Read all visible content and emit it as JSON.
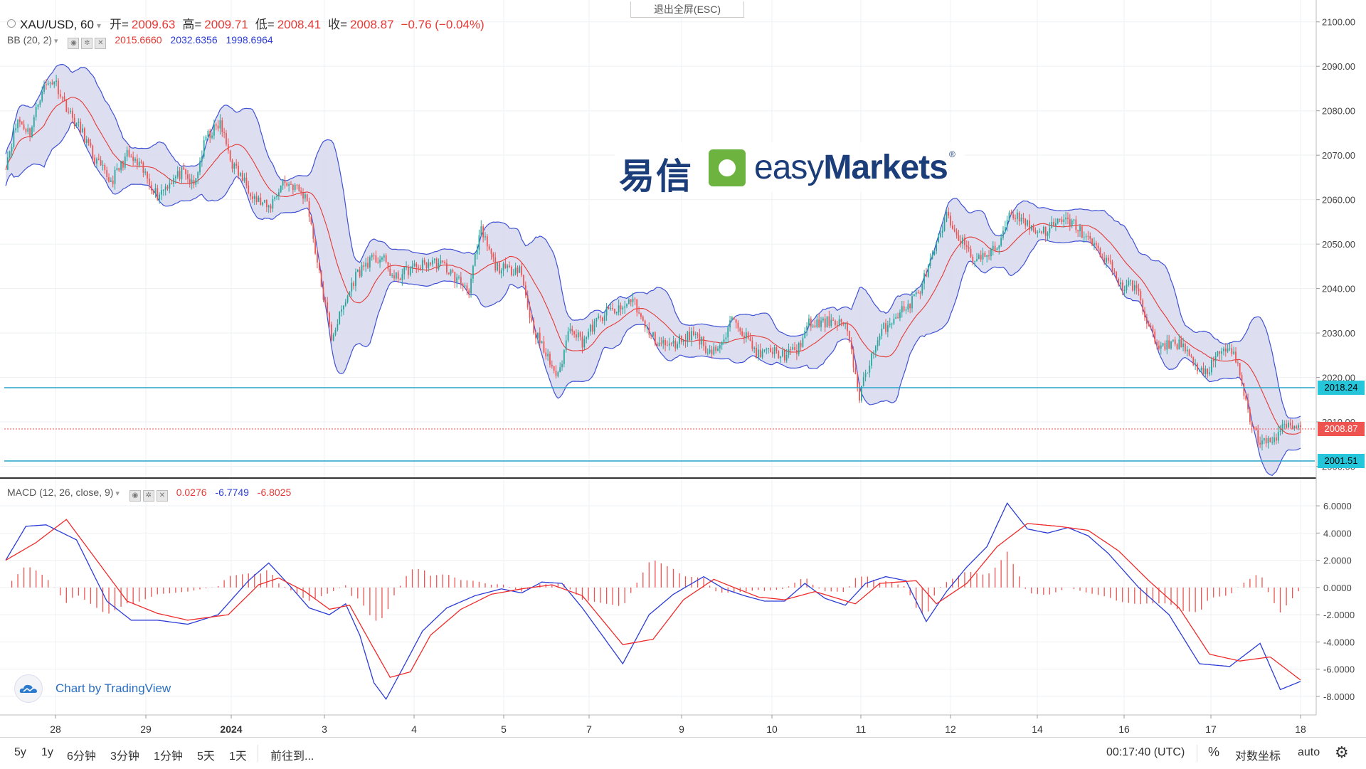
{
  "header": {
    "symbol": "XAU/USD, 60",
    "open_label": "开=",
    "open": "2009.63",
    "high_label": "高=",
    "high": "2009.71",
    "low_label": "低=",
    "low": "2008.41",
    "close_label": "收=",
    "close": "2008.87",
    "change": "−0.76 (−0.04%)"
  },
  "exit_fullscreen": "退出全屏(ESC)",
  "bb": {
    "label": "BB (20, 2)",
    "v1": "2015.6660",
    "v2": "2032.6356",
    "v3": "1998.6964"
  },
  "macd": {
    "label": "MACD (12, 26, close, 9)",
    "v1": "0.0276",
    "v2": "-6.7749",
    "v3": "-6.8025"
  },
  "logo": {
    "cn": "易信",
    "en_light": "easy",
    "en_bold": "Markets",
    "reg": "®"
  },
  "tv_badge": "Chart by TradingView",
  "price_labels": {
    "hline_upper": "2018.24",
    "current": "2008.87",
    "hline_lower": "2001.51"
  },
  "bottom": {
    "ranges": [
      "5y",
      "1y",
      "6分钟",
      "3分钟",
      "1分钟",
      "5天",
      "1天"
    ],
    "goto": "前往到...",
    "time": "00:17:40 (UTC)",
    "percent": "%",
    "log": "对数坐标",
    "auto": "auto"
  },
  "colors": {
    "up": "#26a69a",
    "down": "#ef5350",
    "band_fill": "#d9dcef",
    "band_line": "#3f51d4",
    "basis": "#e53935",
    "hline": "#26a3c9",
    "macd_line": "#2b3cd6",
    "signal_line": "#ef2b2b",
    "hist": "#ef5350"
  },
  "chart_data": [
    {
      "type": "candlestick",
      "name": "XAU/USD, 60",
      "x_labels": [
        "28",
        "29",
        "2024",
        "3",
        "4",
        "5",
        "7",
        "9",
        "10",
        "11",
        "12",
        "14",
        "16",
        "17",
        "18"
      ],
      "y_ticks": [
        "2100.00",
        "2090.00",
        "2080.00",
        "2070.00",
        "2060.00",
        "2050.00",
        "2040.00",
        "2030.00",
        "2020.00",
        "2010.00",
        "2000.00"
      ],
      "ylim": [
        1998,
        2103
      ],
      "close_path": [
        [
          0,
          2068
        ],
        [
          6,
          2078
        ],
        [
          12,
          2075
        ],
        [
          18,
          2085
        ],
        [
          24,
          2087
        ],
        [
          32,
          2079
        ],
        [
          38,
          2075
        ],
        [
          44,
          2069
        ],
        [
          52,
          2064
        ],
        [
          60,
          2070
        ],
        [
          67,
          2067
        ],
        [
          75,
          2061
        ],
        [
          81,
          2064
        ],
        [
          87,
          2066
        ],
        [
          93,
          2063
        ],
        [
          99,
          2074
        ],
        [
          106,
          2077
        ],
        [
          112,
          2068
        ],
        [
          118,
          2064
        ],
        [
          124,
          2060
        ],
        [
          130,
          2058
        ],
        [
          137,
          2064
        ],
        [
          143,
          2063
        ],
        [
          149,
          2060
        ],
        [
          155,
          2043
        ],
        [
          161,
          2029
        ],
        [
          167,
          2036
        ],
        [
          173,
          2043
        ],
        [
          179,
          2046
        ],
        [
          186,
          2047
        ],
        [
          192,
          2042
        ],
        [
          198,
          2044
        ],
        [
          204,
          2045
        ],
        [
          211,
          2046
        ],
        [
          217,
          2045
        ],
        [
          223,
          2042
        ],
        [
          229,
          2040
        ],
        [
          235,
          2053
        ],
        [
          242,
          2045
        ],
        [
          248,
          2044
        ],
        [
          254,
          2045
        ],
        [
          260,
          2032
        ],
        [
          266,
          2026
        ],
        [
          273,
          2020
        ],
        [
          279,
          2032
        ],
        [
          285,
          2028
        ],
        [
          291,
          2032
        ],
        [
          298,
          2035
        ],
        [
          304,
          2035
        ],
        [
          310,
          2038
        ],
        [
          316,
          2031
        ],
        [
          322,
          2028
        ],
        [
          329,
          2027
        ],
        [
          335,
          2029
        ],
        [
          341,
          2030
        ],
        [
          347,
          2026
        ],
        [
          354,
          2027
        ],
        [
          360,
          2034
        ],
        [
          366,
          2029
        ],
        [
          372,
          2025
        ],
        [
          378,
          2026
        ],
        [
          385,
          2025
        ],
        [
          391,
          2026
        ],
        [
          397,
          2032
        ],
        [
          403,
          2032
        ],
        [
          409,
          2033
        ],
        [
          415,
          2032
        ],
        [
          422,
          2016
        ],
        [
          428,
          2025
        ],
        [
          434,
          2031
        ],
        [
          440,
          2034
        ],
        [
          446,
          2036
        ],
        [
          452,
          2040
        ],
        [
          459,
          2048
        ],
        [
          465,
          2056
        ],
        [
          471,
          2052
        ],
        [
          477,
          2047
        ],
        [
          483,
          2047
        ],
        [
          490,
          2049
        ],
        [
          496,
          2057
        ],
        [
          502,
          2056
        ],
        [
          508,
          2053
        ],
        [
          514,
          2053
        ],
        [
          521,
          2055
        ],
        [
          527,
          2055
        ],
        [
          533,
          2052
        ],
        [
          539,
          2049
        ],
        [
          545,
          2046
        ],
        [
          552,
          2040
        ],
        [
          558,
          2041
        ],
        [
          564,
          2033
        ],
        [
          570,
          2026
        ],
        [
          576,
          2028
        ],
        [
          583,
          2027
        ],
        [
          589,
          2021
        ],
        [
          595,
          2022
        ],
        [
          601,
          2026
        ],
        [
          607,
          2026
        ],
        [
          614,
          2012
        ],
        [
          620,
          2005
        ],
        [
          626,
          2006
        ],
        [
          632,
          2008.87
        ]
      ]
    },
    {
      "type": "line",
      "name": "MACD (12, 26, close, 9)",
      "y_ticks": [
        "6.0000",
        "4.0000",
        "2.0000",
        "0.0000",
        "-2.0000",
        "-4.0000",
        "-6.0000",
        "-8.0000"
      ],
      "ylim": [
        -9.1,
        7.1
      ],
      "macd_path": [
        [
          0,
          2
        ],
        [
          10,
          4.5
        ],
        [
          20,
          4.6
        ],
        [
          35,
          3.5
        ],
        [
          50,
          -1
        ],
        [
          62,
          -2.4
        ],
        [
          75,
          -2.4
        ],
        [
          90,
          -2.7
        ],
        [
          105,
          -2
        ],
        [
          120,
          0.5
        ],
        [
          130,
          1.8
        ],
        [
          140,
          0.2
        ],
        [
          150,
          -1.5
        ],
        [
          160,
          -2
        ],
        [
          168,
          -1.2
        ],
        [
          175,
          -3.5
        ],
        [
          182,
          -7
        ],
        [
          188,
          -8.2
        ],
        [
          196,
          -6
        ],
        [
          206,
          -3.2
        ],
        [
          218,
          -1.5
        ],
        [
          232,
          -0.6
        ],
        [
          245,
          -0.1
        ],
        [
          255,
          -0.4
        ],
        [
          265,
          0.4
        ],
        [
          275,
          0.3
        ],
        [
          285,
          -1.5
        ],
        [
          305,
          -5.6
        ],
        [
          318,
          -2
        ],
        [
          330,
          -0.5
        ],
        [
          345,
          0.8
        ],
        [
          355,
          -0.1
        ],
        [
          365,
          -0.6
        ],
        [
          375,
          -1
        ],
        [
          385,
          -1
        ],
        [
          395,
          0.3
        ],
        [
          405,
          -0.8
        ],
        [
          415,
          -1.3
        ],
        [
          425,
          0.3
        ],
        [
          435,
          0.8
        ],
        [
          445,
          0.5
        ],
        [
          455,
          -2.5
        ],
        [
          465,
          -0.3
        ],
        [
          475,
          1.5
        ],
        [
          485,
          3
        ],
        [
          495,
          6.2
        ],
        [
          505,
          4.3
        ],
        [
          515,
          4
        ],
        [
          525,
          4.4
        ],
        [
          535,
          3.8
        ],
        [
          545,
          2.5
        ],
        [
          560,
          0
        ],
        [
          575,
          -2
        ],
        [
          590,
          -5.6
        ],
        [
          605,
          -5.8
        ],
        [
          620,
          -4.1
        ],
        [
          630,
          -7.5
        ],
        [
          640,
          -6.9
        ]
      ],
      "signal_path": [
        [
          0,
          2
        ],
        [
          15,
          3.3
        ],
        [
          30,
          5
        ],
        [
          45,
          2
        ],
        [
          60,
          -1
        ],
        [
          75,
          -1.9
        ],
        [
          90,
          -2.4
        ],
        [
          110,
          -2
        ],
        [
          125,
          0.2
        ],
        [
          135,
          0.7
        ],
        [
          148,
          -0.3
        ],
        [
          160,
          -1.6
        ],
        [
          170,
          -1.3
        ],
        [
          182,
          -4.5
        ],
        [
          190,
          -6.6
        ],
        [
          200,
          -6.2
        ],
        [
          210,
          -3.5
        ],
        [
          225,
          -1.6
        ],
        [
          240,
          -0.5
        ],
        [
          255,
          -0.1
        ],
        [
          270,
          0.2
        ],
        [
          285,
          -0.6
        ],
        [
          305,
          -4.2
        ],
        [
          320,
          -3.8
        ],
        [
          335,
          -0.9
        ],
        [
          350,
          0.6
        ],
        [
          360,
          0
        ],
        [
          372,
          -0.7
        ],
        [
          385,
          -0.9
        ],
        [
          400,
          -0.3
        ],
        [
          420,
          -1.2
        ],
        [
          432,
          0.3
        ],
        [
          450,
          0.5
        ],
        [
          460,
          -1.2
        ],
        [
          475,
          0.3
        ],
        [
          490,
          3
        ],
        [
          505,
          4.7
        ],
        [
          520,
          4.5
        ],
        [
          535,
          4.2
        ],
        [
          550,
          2.7
        ],
        [
          565,
          0.5
        ],
        [
          580,
          -1.5
        ],
        [
          595,
          -4.9
        ],
        [
          610,
          -5.4
        ],
        [
          625,
          -5.1
        ],
        [
          640,
          -6.8
        ]
      ]
    }
  ]
}
